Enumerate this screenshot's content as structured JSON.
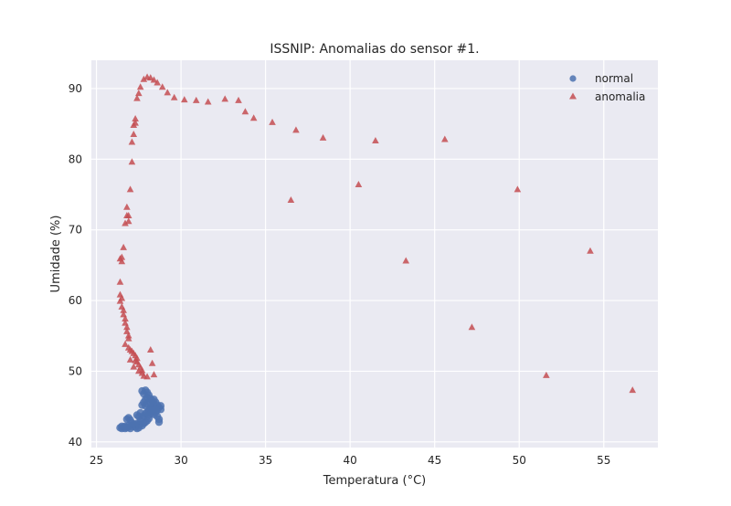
{
  "chart_data": {
    "type": "scatter",
    "title": "ISSNIP: Anomalias do sensor #1.",
    "xlabel": "Temperatura (°C)",
    "ylabel": "Umidade (%)",
    "xlim": [
      24.7,
      58.2
    ],
    "ylim": [
      39.2,
      94.0
    ],
    "xticks": [
      25,
      30,
      35,
      40,
      45,
      50,
      55
    ],
    "yticks": [
      40,
      50,
      60,
      70,
      80,
      90
    ],
    "grid": true,
    "legend_position": "top-right",
    "series": [
      {
        "name": "normal",
        "marker": "circle",
        "color": "#4c72b0",
        "points": [
          [
            26.4,
            42.0
          ],
          [
            26.5,
            41.9
          ],
          [
            26.6,
            42.1
          ],
          [
            26.7,
            41.9
          ],
          [
            26.8,
            42.0
          ],
          [
            26.9,
            42.1
          ],
          [
            27.0,
            41.9
          ],
          [
            26.5,
            42.2
          ],
          [
            26.7,
            42.2
          ],
          [
            26.9,
            42.3
          ],
          [
            27.1,
            42.2
          ],
          [
            27.3,
            42.1
          ],
          [
            27.4,
            41.9
          ],
          [
            27.5,
            42.0
          ],
          [
            26.8,
            43.2
          ],
          [
            26.9,
            43.4
          ],
          [
            27.0,
            43.1
          ],
          [
            27.1,
            42.7
          ],
          [
            27.2,
            42.5
          ],
          [
            27.3,
            42.4
          ],
          [
            27.4,
            42.6
          ],
          [
            27.5,
            42.4
          ],
          [
            27.6,
            42.5
          ],
          [
            27.7,
            42.3
          ],
          [
            27.8,
            42.6
          ],
          [
            27.9,
            42.8
          ],
          [
            28.0,
            43.0
          ],
          [
            28.1,
            43.3
          ],
          [
            27.6,
            43.0
          ],
          [
            27.7,
            43.4
          ],
          [
            27.8,
            43.7
          ],
          [
            27.9,
            44.0
          ],
          [
            28.0,
            44.2
          ],
          [
            28.1,
            44.5
          ],
          [
            28.2,
            44.8
          ],
          [
            28.3,
            45.0
          ],
          [
            28.4,
            45.3
          ],
          [
            28.5,
            45.6
          ],
          [
            28.6,
            45.2
          ],
          [
            28.7,
            44.9
          ],
          [
            28.6,
            44.5
          ],
          [
            28.5,
            44.2
          ],
          [
            28.7,
            43.2
          ],
          [
            28.7,
            42.8
          ],
          [
            28.6,
            43.6
          ],
          [
            28.4,
            43.9
          ],
          [
            28.3,
            44.4
          ],
          [
            28.2,
            44.0
          ],
          [
            28.1,
            43.8
          ],
          [
            27.7,
            45.2
          ],
          [
            27.8,
            45.6
          ],
          [
            27.9,
            46.0
          ],
          [
            28.0,
            46.3
          ],
          [
            28.1,
            46.6
          ],
          [
            27.8,
            46.8
          ],
          [
            27.7,
            47.2
          ],
          [
            27.9,
            47.3
          ],
          [
            28.0,
            47.0
          ],
          [
            28.2,
            46.1
          ],
          [
            28.3,
            45.8
          ],
          [
            28.4,
            46.0
          ],
          [
            28.8,
            45.1
          ],
          [
            28.8,
            44.6
          ],
          [
            27.5,
            43.6
          ],
          [
            27.4,
            43.8
          ],
          [
            27.6,
            44.1
          ],
          [
            27.9,
            45.1
          ],
          [
            28.0,
            45.4
          ],
          [
            28.2,
            45.5
          ],
          [
            28.5,
            44.7
          ]
        ]
      },
      {
        "name": "anomalia",
        "marker": "triangle",
        "color": "#c44e52",
        "points": [
          [
            26.4,
            62.6
          ],
          [
            26.4,
            60.8
          ],
          [
            26.4,
            59.9
          ],
          [
            26.5,
            60.3
          ],
          [
            26.5,
            59.1
          ],
          [
            26.6,
            58.6
          ],
          [
            26.6,
            58.0
          ],
          [
            26.7,
            57.4
          ],
          [
            26.7,
            56.8
          ],
          [
            26.8,
            56.2
          ],
          [
            26.8,
            55.6
          ],
          [
            26.9,
            55.0
          ],
          [
            26.9,
            54.6
          ],
          [
            26.7,
            53.8
          ],
          [
            26.9,
            53.3
          ],
          [
            27.0,
            53.0
          ],
          [
            27.1,
            52.8
          ],
          [
            27.2,
            52.5
          ],
          [
            27.3,
            52.2
          ],
          [
            27.4,
            51.8
          ],
          [
            27.4,
            51.3
          ],
          [
            27.5,
            50.9
          ],
          [
            27.6,
            50.5
          ],
          [
            27.7,
            50.1
          ],
          [
            27.7,
            49.7
          ],
          [
            27.8,
            49.3
          ],
          [
            27.0,
            51.6
          ],
          [
            27.2,
            50.6
          ],
          [
            27.3,
            51.5
          ],
          [
            27.5,
            50.0
          ],
          [
            28.0,
            49.2
          ],
          [
            28.4,
            49.5
          ],
          [
            28.3,
            51.1
          ],
          [
            28.2,
            53.0
          ],
          [
            26.5,
            65.5
          ],
          [
            26.5,
            66.1
          ],
          [
            26.6,
            67.5
          ],
          [
            26.4,
            65.9
          ],
          [
            26.7,
            70.9
          ],
          [
            26.8,
            72.0
          ],
          [
            26.8,
            73.2
          ],
          [
            26.9,
            72.0
          ],
          [
            26.9,
            71.2
          ],
          [
            27.0,
            75.7
          ],
          [
            27.1,
            79.6
          ],
          [
            27.1,
            82.4
          ],
          [
            27.2,
            83.5
          ],
          [
            27.2,
            84.8
          ],
          [
            27.3,
            85.7
          ],
          [
            27.3,
            85.1
          ],
          [
            27.4,
            88.6
          ],
          [
            27.5,
            89.3
          ],
          [
            27.6,
            90.2
          ],
          [
            27.8,
            91.3
          ],
          [
            28.0,
            91.6
          ],
          [
            28.2,
            91.5
          ],
          [
            28.4,
            91.2
          ],
          [
            28.6,
            90.8
          ],
          [
            28.9,
            90.2
          ],
          [
            29.2,
            89.4
          ],
          [
            29.6,
            88.7
          ],
          [
            30.2,
            88.4
          ],
          [
            30.9,
            88.3
          ],
          [
            31.6,
            88.1
          ],
          [
            32.6,
            88.5
          ],
          [
            33.4,
            88.3
          ],
          [
            33.8,
            86.7
          ],
          [
            34.3,
            85.8
          ],
          [
            35.4,
            85.2
          ],
          [
            36.8,
            84.1
          ],
          [
            38.4,
            83.0
          ],
          [
            41.5,
            82.6
          ],
          [
            45.6,
            82.8
          ],
          [
            36.5,
            74.2
          ],
          [
            40.5,
            76.4
          ],
          [
            43.3,
            65.6
          ],
          [
            47.2,
            56.2
          ],
          [
            49.9,
            75.7
          ],
          [
            51.6,
            49.4
          ],
          [
            54.2,
            67.0
          ],
          [
            56.7,
            47.3
          ]
        ]
      }
    ]
  }
}
